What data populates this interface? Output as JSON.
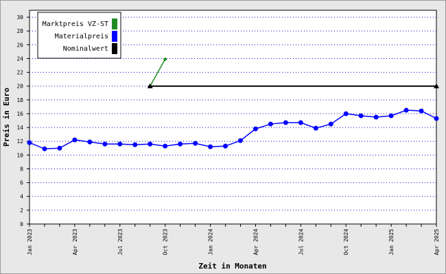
{
  "chart_data": {
    "type": "line",
    "x_label": "Zeit in Monaten",
    "y_label": "Preis in Euro",
    "categories": [
      "Jan 2023",
      null,
      null,
      "Apr 2023",
      null,
      null,
      "Jul 2023",
      null,
      null,
      "Oct 2023",
      null,
      null,
      "Jan 2024",
      null,
      null,
      "Apr 2024",
      null,
      null,
      "Jul 2024",
      null,
      null,
      "Oct 2024",
      null,
      null,
      "Jan 2025",
      null,
      null,
      "Apr 2025"
    ],
    "series": [
      {
        "name": "Marktpreis VZ-ST",
        "color": "#228b22",
        "marker": "diamond",
        "values": [
          null,
          null,
          null,
          null,
          null,
          null,
          null,
          null,
          20,
          23.9,
          null,
          null,
          null,
          null,
          null,
          null,
          null,
          null,
          null,
          null,
          null,
          null,
          null,
          null,
          null,
          null,
          null,
          null
        ]
      },
      {
        "name": "Materialpreis",
        "color": "#0000ff",
        "marker": "circle",
        "values": [
          11.8,
          10.9,
          11.0,
          12.2,
          11.9,
          11.6,
          11.6,
          11.5,
          11.6,
          11.3,
          11.6,
          11.7,
          11.2,
          11.3,
          12.1,
          13.8,
          14.5,
          14.7,
          14.7,
          13.9,
          14.5,
          16.0,
          15.7,
          15.5,
          15.7,
          16.5,
          16.4,
          15.3
        ]
      },
      {
        "name": "Nominalwert",
        "color": "#000000",
        "marker": "triangle-ends",
        "values": [
          null,
          null,
          null,
          null,
          null,
          null,
          null,
          null,
          20,
          20,
          20,
          20,
          20,
          20,
          20,
          20,
          20,
          20,
          20,
          20,
          20,
          20,
          20,
          20,
          20,
          20,
          20,
          20
        ]
      }
    ],
    "ylim": [
      0,
      31
    ],
    "yticks": [
      0,
      2,
      4,
      6,
      8,
      10,
      12,
      14,
      16,
      18,
      20,
      22,
      24,
      26,
      28,
      30
    ],
    "grid": true,
    "legend": "top-left"
  }
}
